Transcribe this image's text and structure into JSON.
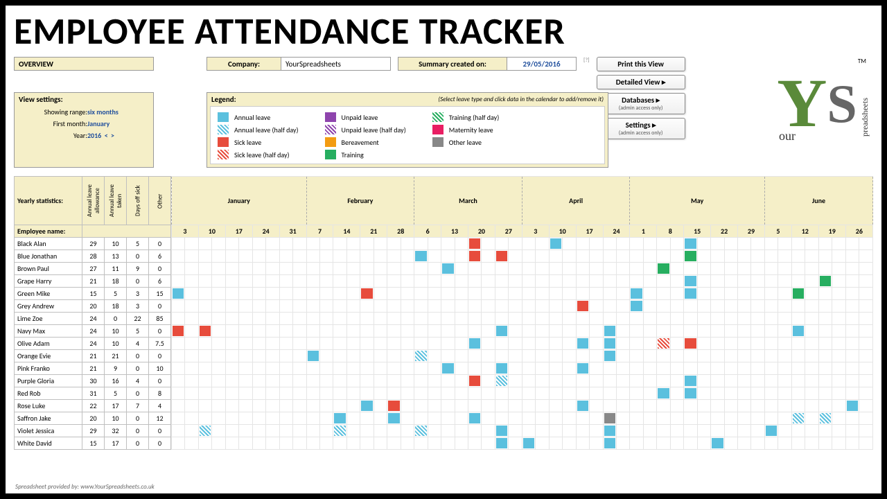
{
  "title": "EMPLOYEE ATTENDANCE TRACKER",
  "overview_label": "OVERVIEW",
  "company_label": "Company:",
  "company_value": "YourSpreadsheets",
  "summary_label": "Summary created on:",
  "summary_value": "29/05/2016",
  "buttons": {
    "print": "Print this View",
    "detailed": "Detailed View ▸",
    "databases": "Databases ▸",
    "databases_sub": "(admin access only)",
    "settings": "Settings ▸",
    "settings_sub": "(admin access only)"
  },
  "view_settings": {
    "header": "View settings:",
    "rows": [
      {
        "label": "Showing range:",
        "value": "six months"
      },
      {
        "label": "First month:",
        "value": "January"
      },
      {
        "label": "Year:",
        "value": "2016"
      }
    ],
    "nav_prev": "<",
    "nav_next": ">"
  },
  "legend": {
    "header": "Legend:",
    "hint": "(Select leave type and click data in the calendar to add/remove it)",
    "items": [
      {
        "label": "Annual leave",
        "color": "#5bc0de",
        "type": "solid"
      },
      {
        "label": "Annual leave (half day)",
        "color": "#5bc0de",
        "type": "hatch"
      },
      {
        "label": "Sick leave",
        "color": "#e74c3c",
        "type": "solid"
      },
      {
        "label": "Sick leave (half day)",
        "color": "#e74c3c",
        "type": "hatch"
      },
      {
        "label": "Unpaid leave",
        "color": "#8e44ad",
        "type": "solid"
      },
      {
        "label": "Unpaid leave (half day)",
        "color": "#8e44ad",
        "type": "hatch"
      },
      {
        "label": "Bereavement",
        "color": "#f39c12",
        "type": "solid"
      },
      {
        "label": "Training",
        "color": "#27ae60",
        "type": "solid"
      },
      {
        "label": "Training (half day)",
        "color": "#27ae60",
        "type": "hatch"
      },
      {
        "label": "Maternity leave",
        "color": "#e91e63",
        "type": "solid"
      },
      {
        "label": "Other leave",
        "color": "#888888",
        "type": "solid"
      }
    ]
  },
  "stats_headers": {
    "title_top": "Yearly statistics:",
    "title_left": "Employee name:",
    "cols": [
      "Annual leave allowance",
      "Annual leave taken",
      "Days off sick",
      "Other"
    ]
  },
  "months": [
    {
      "name": "January",
      "days": [
        3,
        10,
        17,
        24,
        31
      ]
    },
    {
      "name": "February",
      "days": [
        7,
        14,
        21,
        28
      ]
    },
    {
      "name": "March",
      "days": [
        6,
        13,
        20,
        27
      ]
    },
    {
      "name": "April",
      "days": [
        3,
        10,
        17,
        24
      ]
    },
    {
      "name": "May",
      "days": [
        1,
        8,
        15,
        22,
        29
      ]
    },
    {
      "name": "June",
      "days": [
        5,
        12,
        19,
        26
      ]
    }
  ],
  "employees": [
    {
      "name": "Black Alan",
      "stats": [
        29,
        10,
        5,
        0
      ],
      "leaves": [
        {
          "m": 2,
          "d": 2,
          "t": "sick"
        },
        {
          "m": 3,
          "d": 1,
          "t": "annual"
        },
        {
          "m": 4,
          "d": 2,
          "t": "annual"
        }
      ]
    },
    {
      "name": "Blue Jonathan",
      "stats": [
        28,
        13,
        0,
        6
      ],
      "leaves": [
        {
          "m": 2,
          "d": 0,
          "t": "annual"
        },
        {
          "m": 2,
          "d": 2,
          "t": "sick"
        },
        {
          "m": 2,
          "d": 3,
          "t": "sick"
        },
        {
          "m": 4,
          "d": 2,
          "t": "training"
        }
      ]
    },
    {
      "name": "Brown Paul",
      "stats": [
        27,
        11,
        9,
        0
      ],
      "leaves": [
        {
          "m": 2,
          "d": 1,
          "t": "annual"
        },
        {
          "m": 4,
          "d": 1,
          "t": "training"
        }
      ]
    },
    {
      "name": "Grape Harry",
      "stats": [
        21,
        18,
        0,
        6
      ],
      "leaves": [
        {
          "m": 4,
          "d": 2,
          "t": "annual"
        },
        {
          "m": 5,
          "d": 2,
          "t": "training"
        }
      ]
    },
    {
      "name": "Green Mike",
      "stats": [
        15,
        5,
        3,
        15
      ],
      "leaves": [
        {
          "m": 0,
          "d": 0,
          "t": "annual"
        },
        {
          "m": 1,
          "d": 2,
          "t": "sick"
        },
        {
          "m": 4,
          "d": 0,
          "t": "annual"
        },
        {
          "m": 4,
          "d": 2,
          "t": "annual"
        },
        {
          "m": 5,
          "d": 1,
          "t": "training"
        }
      ]
    },
    {
      "name": "Grey Andrew",
      "stats": [
        20,
        18,
        3,
        0
      ],
      "leaves": [
        {
          "m": 3,
          "d": 2,
          "t": "sick"
        },
        {
          "m": 4,
          "d": 0,
          "t": "annual"
        }
      ]
    },
    {
      "name": "Lime Zoe",
      "stats": [
        24,
        0,
        22,
        85
      ],
      "leaves": []
    },
    {
      "name": "Navy Max",
      "stats": [
        24,
        10,
        5,
        0
      ],
      "leaves": [
        {
          "m": 0,
          "d": 0,
          "t": "sick"
        },
        {
          "m": 0,
          "d": 1,
          "t": "sick"
        },
        {
          "m": 2,
          "d": 3,
          "t": "annual"
        },
        {
          "m": 3,
          "d": 3,
          "t": "annual"
        },
        {
          "m": 5,
          "d": 1,
          "t": "annual"
        }
      ]
    },
    {
      "name": "Olive Adam",
      "stats": [
        24,
        10,
        4,
        7.5
      ],
      "leaves": [
        {
          "m": 2,
          "d": 2,
          "t": "annual"
        },
        {
          "m": 3,
          "d": 2,
          "t": "annual"
        },
        {
          "m": 3,
          "d": 3,
          "t": "annual"
        },
        {
          "m": 4,
          "d": 1,
          "t": "sick-half"
        },
        {
          "m": 4,
          "d": 2,
          "t": "sick"
        }
      ]
    },
    {
      "name": "Orange Evie",
      "stats": [
        21,
        21,
        0,
        0
      ],
      "leaves": [
        {
          "m": 1,
          "d": 0,
          "t": "annual"
        },
        {
          "m": 2,
          "d": 0,
          "t": "annual-half"
        },
        {
          "m": 3,
          "d": 3,
          "t": "annual"
        }
      ]
    },
    {
      "name": "Pink Franko",
      "stats": [
        21,
        9,
        0,
        10
      ],
      "leaves": [
        {
          "m": 2,
          "d": 1,
          "t": "annual"
        },
        {
          "m": 2,
          "d": 3,
          "t": "annual"
        },
        {
          "m": 3,
          "d": 2,
          "t": "annual"
        }
      ]
    },
    {
      "name": "Purple Gloria",
      "stats": [
        30,
        16,
        4,
        0
      ],
      "leaves": [
        {
          "m": 2,
          "d": 2,
          "t": "sick"
        },
        {
          "m": 2,
          "d": 3,
          "t": "annual-half"
        },
        {
          "m": 4,
          "d": 2,
          "t": "annual"
        }
      ]
    },
    {
      "name": "Red Rob",
      "stats": [
        31,
        5,
        0,
        8
      ],
      "leaves": [
        {
          "m": 4,
          "d": 1,
          "t": "annual"
        },
        {
          "m": 4,
          "d": 2,
          "t": "annual"
        }
      ]
    },
    {
      "name": "Rose Luke",
      "stats": [
        22,
        17,
        7,
        4
      ],
      "leaves": [
        {
          "m": 1,
          "d": 2,
          "t": "annual"
        },
        {
          "m": 1,
          "d": 3,
          "t": "sick"
        },
        {
          "m": 3,
          "d": 2,
          "t": "annual"
        },
        {
          "m": 5,
          "d": 3,
          "t": "annual"
        }
      ]
    },
    {
      "name": "Saffron Jake",
      "stats": [
        20,
        10,
        0,
        12
      ],
      "leaves": [
        {
          "m": 1,
          "d": 1,
          "t": "annual"
        },
        {
          "m": 1,
          "d": 3,
          "t": "annual"
        },
        {
          "m": 2,
          "d": 2,
          "t": "annual"
        },
        {
          "m": 3,
          "d": 3,
          "t": "other"
        },
        {
          "m": 5,
          "d": 1,
          "t": "annual-half"
        },
        {
          "m": 5,
          "d": 2,
          "t": "annual-half"
        }
      ]
    },
    {
      "name": "Violet Jessica",
      "stats": [
        29,
        32,
        0,
        0
      ],
      "leaves": [
        {
          "m": 0,
          "d": 1,
          "t": "annual-half"
        },
        {
          "m": 1,
          "d": 1,
          "t": "annual-half"
        },
        {
          "m": 2,
          "d": 0,
          "t": "annual-half"
        },
        {
          "m": 2,
          "d": 3,
          "t": "annual"
        },
        {
          "m": 3,
          "d": 3,
          "t": "annual"
        },
        {
          "m": 5,
          "d": 0,
          "t": "annual"
        }
      ]
    },
    {
      "name": "White David",
      "stats": [
        15,
        17,
        0,
        0
      ],
      "leaves": [
        {
          "m": 2,
          "d": 3,
          "t": "annual"
        },
        {
          "m": 3,
          "d": 0,
          "t": "annual"
        },
        {
          "m": 3,
          "d": 3,
          "t": "annual"
        },
        {
          "m": 4,
          "d": 3,
          "t": "annual"
        }
      ]
    }
  ],
  "footer": "Spreadsheet provided by:   www.YourSpreadsheets.co.uk",
  "logo": {
    "y": "Y",
    "s": "S",
    "our": "our",
    "spreadsheets": "preadsheets",
    "tm": "TM"
  }
}
